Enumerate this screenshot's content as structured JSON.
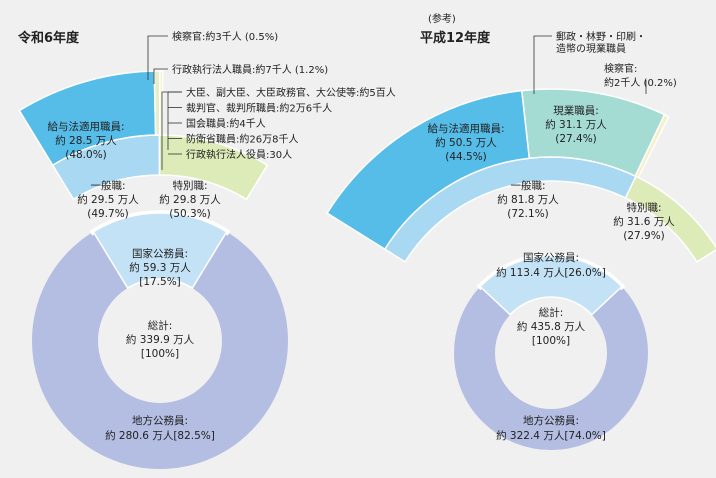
{
  "chart_data": [
    {
      "type": "pie",
      "title": "令和6年度",
      "total": {
        "label": "総計:",
        "value": "約 339.9 万人",
        "pct": "[100%]"
      },
      "local": {
        "label": "地方公務員:",
        "value": "約 280.6 万人[82.5%]",
        "amount": 280.6
      },
      "national": {
        "label": "国家公務員:",
        "value": "約 59.3 万人",
        "pct": "[17.5%]",
        "amount": 59.3
      },
      "general": {
        "label": "一般職:",
        "value": "約 29.5 万人",
        "pct": "(49.7%)",
        "amount": 29.5
      },
      "special": {
        "label": "特別職:",
        "value": "約 29.8 万人",
        "pct": "(50.3%)",
        "amount": 29.8
      },
      "salary_law": {
        "label": "給与法適用職員:",
        "value": "約 28.5 万人",
        "pct": "(48.0%)",
        "amount": 28.5
      },
      "prosecutor_note": "検察官:約3千人 (0.5%)",
      "agency_note": "行政執行法人職員:約7千人 (1.2%)",
      "special_notes": [
        "大臣、副大臣、大臣政務官、大公使等:約5百人",
        "裁判官、裁判所職員:約2万6千人",
        "国会職員:約4千人",
        "防衛省職員:約26万8千人",
        "行政執行法人役員:30人"
      ]
    },
    {
      "type": "pie",
      "title_note": "(参考)",
      "title": "平成12年度",
      "total": {
        "label": "総計:",
        "value": "約 435.8 万人",
        "pct": "[100%]"
      },
      "local": {
        "label": "地方公務員:",
        "value": "約 322.4 万人[74.0%]",
        "amount": 322.4
      },
      "national": {
        "label": "国家公務員:",
        "value": "約 113.4 万人[26.0%]",
        "amount": 113.4
      },
      "general": {
        "label": "一般職:",
        "value": "約 81.8 万人",
        "pct": "(72.1%)",
        "amount": 81.8
      },
      "special": {
        "label": "特別職:",
        "value": "約 31.6 万人",
        "pct": "(27.9%)",
        "amount": 31.6
      },
      "salary_law": {
        "label": "給与法適用職員:",
        "value": "約 50.5 万人",
        "pct": "(44.5%)",
        "amount": 50.5
      },
      "field_staff": {
        "label": "現業職員:",
        "value": "約 31.1 万人",
        "pct": "(27.4%)",
        "amount": 31.1
      },
      "postal_note": [
        "郵政・林野・印刷・",
        "造幣の現業職員"
      ],
      "prosecutor_note": [
        "検察官:",
        "約2千人 (0.2%)"
      ]
    }
  ],
  "colors": {
    "local": "#b4bde2",
    "national": "#c4e2f5",
    "general": "#a8d8f2",
    "special": "#dcebb8",
    "salary": "#56bce8",
    "field": "#a4dbd2",
    "tiny": "#e8edcc",
    "stroke": "#ffffff"
  }
}
